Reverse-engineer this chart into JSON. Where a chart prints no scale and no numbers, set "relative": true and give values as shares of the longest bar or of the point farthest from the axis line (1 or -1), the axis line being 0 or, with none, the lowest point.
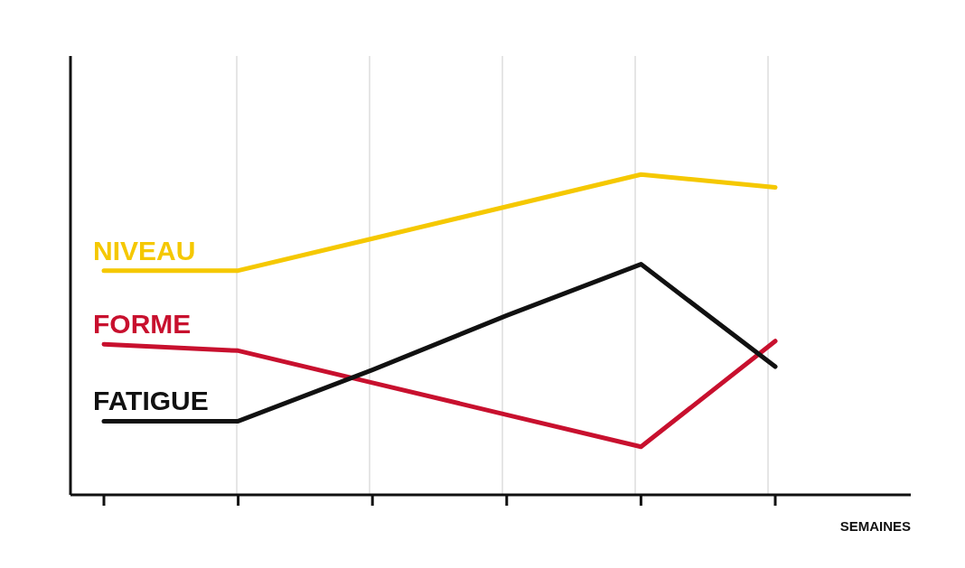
{
  "chart_data": {
    "type": "line",
    "relative": true,
    "xlabel": "SEMAINES",
    "categories": [
      null,
      null,
      null,
      null,
      null,
      null
    ],
    "grid": "x",
    "legend": false,
    "marker": "none",
    "line_style": "solid",
    "series": [
      {
        "name": "NIVEAU",
        "color": "#f5c800",
        "values": [
          0.7,
          0.7,
          0.8,
          0.9,
          1.0,
          0.96
        ]
      },
      {
        "name": "FORME",
        "color": "#c8102e",
        "values": [
          0.47,
          0.45,
          0.35,
          0.25,
          0.15,
          0.48
        ]
      },
      {
        "name": "FATIGUE",
        "color": "#111111",
        "values": [
          0.23,
          0.23,
          0.39,
          0.56,
          0.72,
          0.4
        ]
      }
    ]
  }
}
